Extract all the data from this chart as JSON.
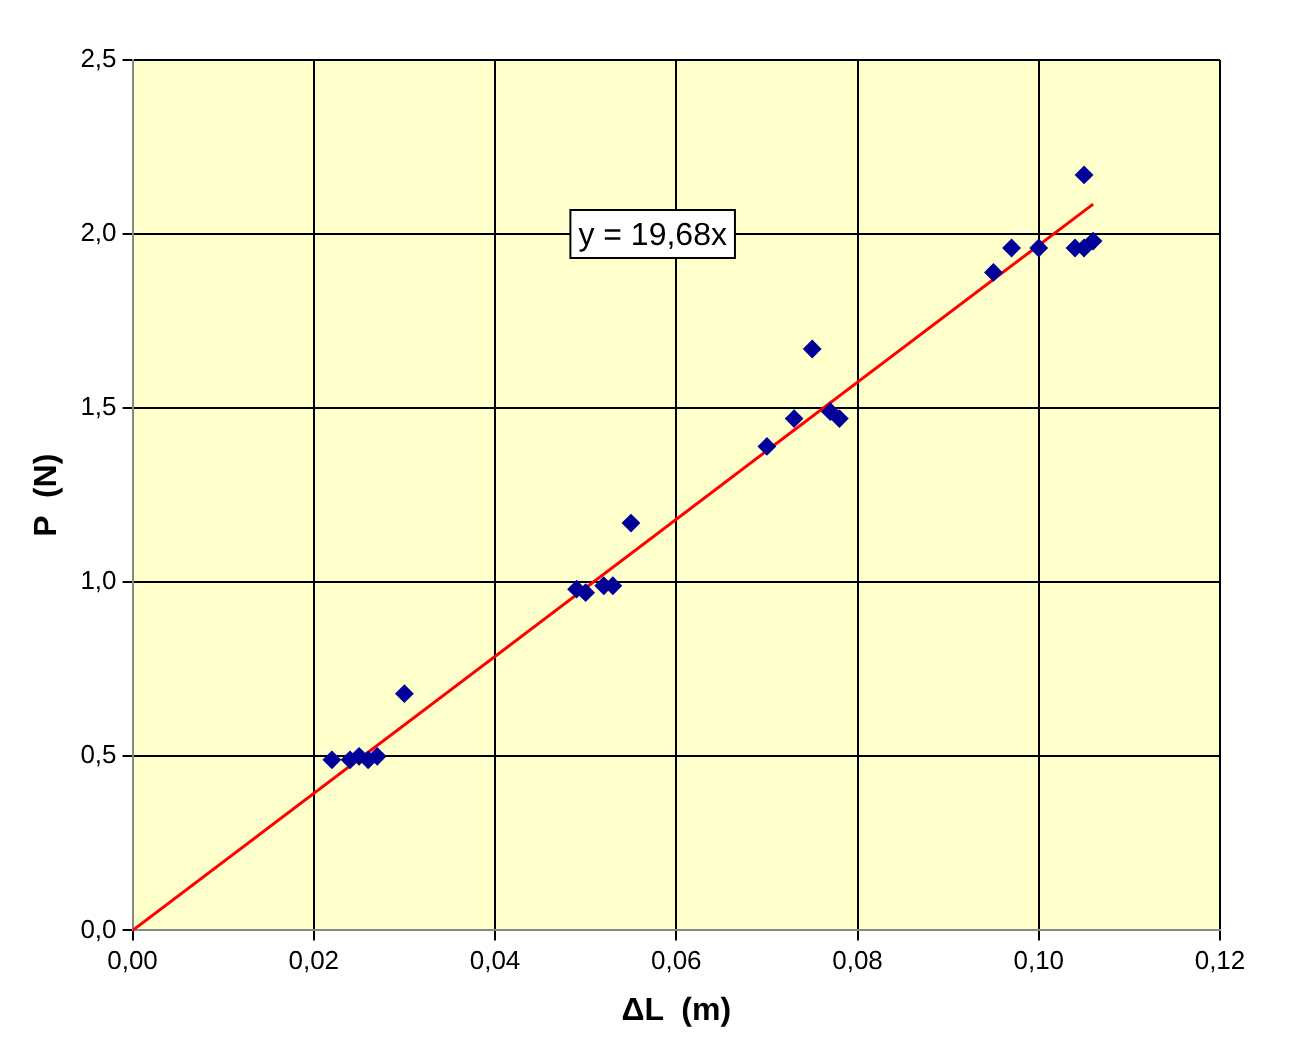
{
  "chart_data": {
    "type": "scatter",
    "xlabel": "ΔL  (m)",
    "ylabel": "P  (N)",
    "annotations": [
      "y = 19,68x"
    ],
    "xlim": [
      0,
      0.12
    ],
    "xticks": [
      {
        "value": 0,
        "label": "0,00"
      },
      {
        "value": 0.02,
        "label": "0,02"
      },
      {
        "value": 0.04,
        "label": "0,04"
      },
      {
        "value": 0.06,
        "label": "0,06"
      },
      {
        "value": 0.08,
        "label": "0,08"
      },
      {
        "value": 0.1,
        "label": "0,10"
      },
      {
        "value": 0.12,
        "label": "0,12"
      }
    ],
    "ylim": [
      0,
      2.5
    ],
    "yticks": [
      {
        "value": 0,
        "label": "0,0"
      },
      {
        "value": 0.5,
        "label": "0,5"
      },
      {
        "value": 1,
        "label": "1,0"
      },
      {
        "value": 1.5,
        "label": "1,5"
      },
      {
        "value": 2,
        "label": "2,0"
      },
      {
        "value": 2.5,
        "label": "2,5"
      }
    ],
    "grid": true,
    "legend": false,
    "marker": "diamond",
    "series": [
      {
        "color": "#000099",
        "x": [
          0.022,
          0.024,
          0.025,
          0.026,
          0.027,
          0.03,
          0.049,
          0.05,
          0.052,
          0.053,
          0.055,
          0.07,
          0.073,
          0.075,
          0.077,
          0.078,
          0.095,
          0.097,
          0.1,
          0.104,
          0.105,
          0.106,
          0.105
        ],
        "values": [
          0.49,
          0.49,
          0.5,
          0.49,
          0.5,
          0.68,
          0.98,
          0.97,
          0.99,
          0.99,
          1.17,
          1.39,
          1.47,
          1.67,
          1.49,
          1.47,
          1.89,
          1.96,
          1.96,
          1.96,
          1.96,
          1.98,
          2.17
        ]
      },
      {
        "type": "line",
        "color": "#ff0000",
        "marker": "none",
        "x": [
          0,
          0.106
        ],
        "values": [
          0,
          2.086
        ]
      }
    ]
  }
}
